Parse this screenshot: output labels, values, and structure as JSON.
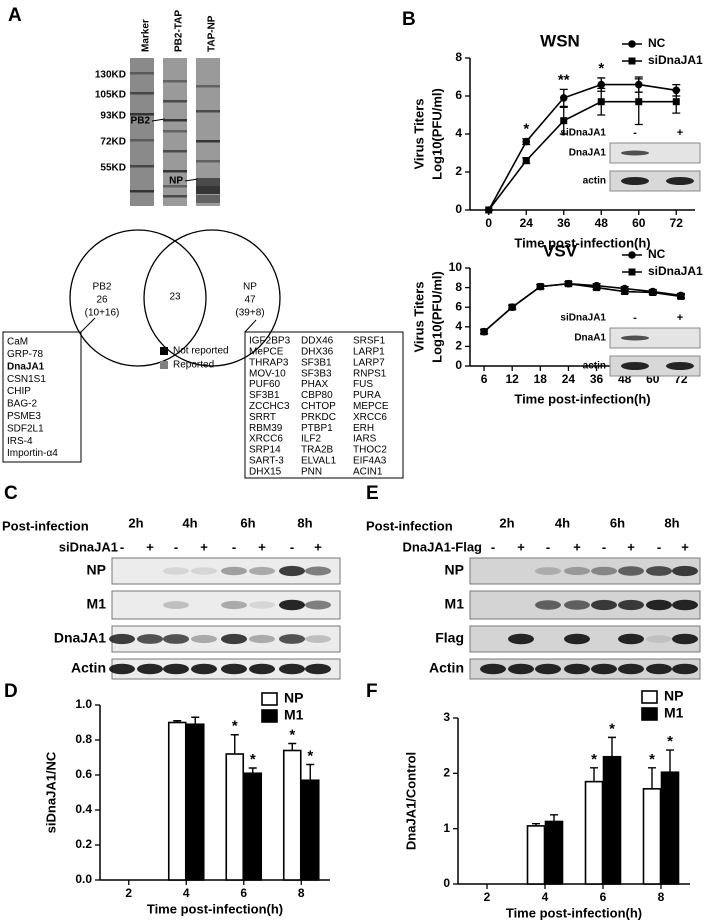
{
  "panel_labels": [
    "A",
    "B",
    "C",
    "D",
    "E",
    "F"
  ],
  "panel_a": {
    "lanes": [
      "Marker",
      "PB2-TAP",
      "TAP-NP"
    ],
    "size_markers": [
      "130KD",
      "105KD",
      "93KD",
      "72KD",
      "55KD"
    ],
    "band_labels": [
      "PB2",
      "NP"
    ],
    "venn": {
      "left": {
        "name": "PB2",
        "count": 26,
        "detail": "(10+16)"
      },
      "overlap": 23,
      "right": {
        "name": "NP",
        "count": 47,
        "detail": "(39+8)"
      }
    },
    "legend": [
      {
        "label": "Not reported",
        "color": "#000000"
      },
      {
        "label": "Reported",
        "color": "#808080"
      }
    ],
    "pb2_list": [
      "CaM",
      "GRP-78",
      "DnaJA1",
      "CSN1S1",
      "CHIP",
      "BAG-2",
      "PSME3",
      "SDF2L1",
      "IRS-4",
      "Importin-α4"
    ],
    "highlight": "DnaJA1",
    "np_list": [
      [
        "IGF2BP3",
        "DDX46",
        "SRSF1"
      ],
      [
        "MePCE",
        "DHX36",
        "LARP1"
      ],
      [
        "THRAP3",
        "SF3B1",
        "LARP7"
      ],
      [
        "MOV-10",
        "SF3B3",
        "RNPS1"
      ],
      [
        "PUF60",
        "PHAX",
        "FUS"
      ],
      [
        "SF3B1",
        "CBP80",
        "PURA"
      ],
      [
        "ZCCHC3",
        "CHTOP",
        "MEPCE"
      ],
      [
        "SRRT",
        "PRKDC",
        "XRCC6"
      ],
      [
        "RBM39",
        "PTBP1",
        "ERH"
      ],
      [
        "XRCC6",
        "ILF2",
        "IARS"
      ],
      [
        "SRP14",
        "TRA2B",
        "THOC2"
      ],
      [
        "SART-3",
        "ELVAL1",
        "EIF4A3"
      ],
      [
        "DHX15",
        "PNN",
        "ACIN1"
      ]
    ]
  },
  "chart_data": [
    {
      "type": "line",
      "title": "WSN",
      "ylabel": [
        "Virus Titers",
        "Log10(PFU/ml)"
      ],
      "xlabel": "Time post-infection(h)",
      "categories": [
        0,
        24,
        36,
        48,
        60,
        72
      ],
      "ylim": [
        0,
        8
      ],
      "yticks": [
        0,
        2,
        4,
        6,
        8
      ],
      "legend": "upper right",
      "series": [
        {
          "name": "NC",
          "color": "#000000",
          "marker": "circle",
          "values": [
            0,
            3.6,
            5.9,
            6.6,
            6.6,
            6.3
          ],
          "errors": [
            0,
            0.15,
            0.45,
            0.35,
            0.4,
            0.3
          ],
          "value_annotations": [
            null,
            "*",
            "**",
            "*",
            null,
            null
          ]
        },
        {
          "name": "siDnaJA1",
          "color": "#000000",
          "marker": "square",
          "values": [
            0,
            2.6,
            4.7,
            5.7,
            5.7,
            5.7
          ],
          "errors": [
            0,
            0.15,
            0.7,
            0.7,
            1.2,
            0.6
          ],
          "value_annotations": [
            null,
            null,
            null,
            null,
            null,
            null
          ]
        }
      ],
      "inset": {
        "header": "siDnaJA1",
        "signs": [
          "-",
          "+"
        ],
        "rows": [
          "DnaJA1",
          "actin"
        ]
      }
    },
    {
      "type": "line",
      "title": "VSV",
      "ylabel": [
        "Virus Titers",
        "Log10(PFU/ml)"
      ],
      "xlabel": "Time post-infection(h)",
      "categories": [
        6,
        12,
        18,
        24,
        36,
        48,
        60,
        72
      ],
      "ylim": [
        0,
        10
      ],
      "yticks": [
        0,
        2,
        4,
        6,
        8,
        10
      ],
      "legend": "upper right",
      "series": [
        {
          "name": "NC",
          "color": "#000000",
          "marker": "circle",
          "values": [
            3.5,
            6.0,
            8.1,
            8.4,
            8.2,
            7.9,
            7.6,
            7.2
          ],
          "errors": [
            0.2,
            0.2,
            0.2,
            0.2,
            0.2,
            0.2,
            0.2,
            0.2
          ],
          "value_annotations": [
            null,
            null,
            null,
            null,
            null,
            null,
            null,
            null
          ]
        },
        {
          "name": "siDnaJA1",
          "color": "#000000",
          "marker": "square",
          "values": [
            3.5,
            6.0,
            8.1,
            8.4,
            8.0,
            7.6,
            7.5,
            7.1
          ],
          "errors": [
            0.2,
            0.2,
            0.2,
            0.2,
            0.2,
            0.2,
            0.2,
            0.2
          ],
          "value_annotations": [
            null,
            null,
            null,
            null,
            null,
            null,
            null,
            null
          ]
        }
      ],
      "inset": {
        "header": "siDnaJA1",
        "signs": [
          "-",
          "+"
        ],
        "rows": [
          "DnaA1",
          "actin"
        ]
      }
    },
    {
      "type": "bar",
      "ylabel": "siDnaJA1/NC",
      "xlabel": "Time post-infection(h)",
      "categories": [
        2,
        4,
        6,
        8
      ],
      "ylim": [
        0,
        1
      ],
      "yticks": [
        {
          "value": 0,
          "label": "0.0"
        },
        0.2,
        0.4,
        0.6,
        0.8,
        {
          "value": 1,
          "label": "1.0"
        }
      ],
      "legend": "upper right",
      "series": [
        {
          "name": "NP",
          "color": "#ffffff",
          "values": [
            null,
            0.9,
            0.72,
            0.74
          ],
          "errors": [
            null,
            0.01,
            0.11,
            0.04
          ],
          "value_annotations": [
            null,
            null,
            "*",
            "*"
          ]
        },
        {
          "name": "M1",
          "color": "#000000",
          "values": [
            null,
            0.89,
            0.61,
            0.57
          ],
          "errors": [
            null,
            0.04,
            0.03,
            0.09
          ],
          "value_annotations": [
            null,
            null,
            "*",
            "*"
          ]
        }
      ]
    },
    {
      "type": "bar",
      "ylabel": "DnaJA1/Control",
      "xlabel": "Time post-infection(h)",
      "categories": [
        2,
        4,
        6,
        8
      ],
      "ylim": [
        0,
        3
      ],
      "yticks": [
        0,
        1,
        2,
        3
      ],
      "legend": "upper right",
      "series": [
        {
          "name": "NP",
          "color": "#ffffff",
          "values": [
            null,
            1.05,
            1.85,
            1.72
          ],
          "errors": [
            null,
            0.04,
            0.25,
            0.38
          ],
          "value_annotations": [
            null,
            null,
            "*",
            "*"
          ]
        },
        {
          "name": "M1",
          "color": "#000000",
          "values": [
            null,
            1.13,
            2.3,
            2.02
          ],
          "errors": [
            null,
            0.12,
            0.35,
            0.4
          ],
          "value_annotations": [
            null,
            null,
            "*",
            "*"
          ]
        }
      ]
    }
  ],
  "panel_c": {
    "header": "Post-infection",
    "times": [
      "2h",
      "4h",
      "6h",
      "8h"
    ],
    "treatment": "siDnaJA1",
    "lane_signs": [
      "-",
      "+"
    ],
    "rows": [
      "NP",
      "M1",
      "DnaJA1",
      "Actin"
    ]
  },
  "panel_e": {
    "header": "Post-infection",
    "times": [
      "2h",
      "4h",
      "6h",
      "8h"
    ],
    "treatment": "DnaJA1-Flag",
    "lane_signs": [
      "-",
      "+"
    ],
    "rows": [
      "NP",
      "M1",
      "Flag",
      "Actin"
    ]
  }
}
